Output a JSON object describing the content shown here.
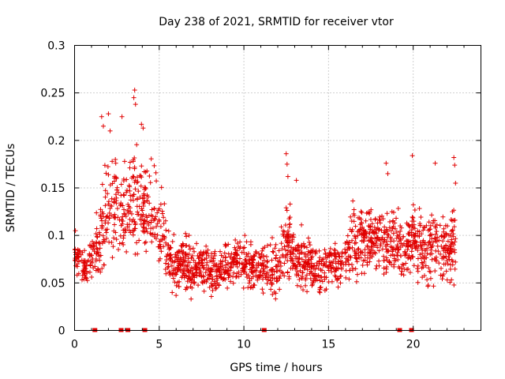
{
  "chart_data": {
    "type": "scatter",
    "title": "Day 238 of 2021, SRMTID for receiver vtor",
    "xlabel": "GPS time / hours",
    "ylabel": "SRMTID / TECUs",
    "xlim": [
      0,
      24
    ],
    "ylim": [
      0,
      0.3
    ],
    "x_ticks": [
      0,
      5,
      10,
      15,
      20
    ],
    "x_tick_labels": [
      "0",
      "5",
      "10",
      "15",
      "20"
    ],
    "y_ticks": [
      0,
      0.05,
      0.1,
      0.15,
      0.2,
      0.25,
      0.3
    ],
    "y_tick_labels": [
      "0",
      "0.05",
      "0.1",
      "0.15",
      "0.2",
      "0.25",
      "0.3"
    ],
    "grid": true,
    "marker": "plus",
    "color": "#e00000",
    "envelope_hours": [
      0,
      0.5,
      1,
      1.5,
      2,
      2.5,
      3,
      3.5,
      4,
      4.5,
      5,
      5.5,
      6,
      6.5,
      7,
      7.5,
      8,
      8.5,
      9,
      9.5,
      10,
      10.5,
      11,
      11.5,
      12,
      12.5,
      13,
      13.5,
      14,
      14.5,
      15,
      15.5,
      16,
      16.5,
      17,
      17.5,
      18,
      18.5,
      19,
      19.5,
      20,
      20.5,
      21,
      21.5,
      22,
      22.5
    ],
    "envelope_low": [
      0.06,
      0.04,
      0.05,
      0.04,
      0.06,
      0.05,
      0.05,
      0.06,
      0.06,
      0.05,
      0.05,
      0.04,
      0.03,
      0.03,
      0.03,
      0.03,
      0.03,
      0.03,
      0.035,
      0.035,
      0.04,
      0.03,
      0.03,
      0.025,
      0.02,
      0.03,
      0.03,
      0.03,
      0.035,
      0.03,
      0.035,
      0.04,
      0.04,
      0.045,
      0.05,
      0.05,
      0.045,
      0.04,
      0.035,
      0.04,
      0.045,
      0.04,
      0.035,
      0.04,
      0.035,
      0.04
    ],
    "envelope_high": [
      0.1,
      0.09,
      0.1,
      0.15,
      0.21,
      0.2,
      0.2,
      0.22,
      0.21,
      0.19,
      0.18,
      0.12,
      0.1,
      0.12,
      0.1,
      0.1,
      0.1,
      0.09,
      0.1,
      0.11,
      0.12,
      0.1,
      0.1,
      0.1,
      0.12,
      0.16,
      0.13,
      0.11,
      0.1,
      0.1,
      0.1,
      0.1,
      0.11,
      0.15,
      0.15,
      0.14,
      0.14,
      0.14,
      0.14,
      0.12,
      0.15,
      0.13,
      0.14,
      0.14,
      0.13,
      0.16
    ],
    "spikes": [
      {
        "x": 0.05,
        "y": 0.105
      },
      {
        "x": 1.6,
        "y": 0.225
      },
      {
        "x": 1.7,
        "y": 0.215
      },
      {
        "x": 2.0,
        "y": 0.228
      },
      {
        "x": 2.1,
        "y": 0.21
      },
      {
        "x": 2.8,
        "y": 0.225
      },
      {
        "x": 3.5,
        "y": 0.245
      },
      {
        "x": 3.55,
        "y": 0.253
      },
      {
        "x": 3.6,
        "y": 0.238
      },
      {
        "x": 3.95,
        "y": 0.217
      },
      {
        "x": 4.05,
        "y": 0.213
      },
      {
        "x": 12.5,
        "y": 0.186
      },
      {
        "x": 12.55,
        "y": 0.175
      },
      {
        "x": 12.6,
        "y": 0.162
      },
      {
        "x": 13.1,
        "y": 0.158
      },
      {
        "x": 18.4,
        "y": 0.176
      },
      {
        "x": 18.5,
        "y": 0.165
      },
      {
        "x": 19.95,
        "y": 0.184
      },
      {
        "x": 21.3,
        "y": 0.176
      },
      {
        "x": 22.4,
        "y": 0.182
      },
      {
        "x": 22.45,
        "y": 0.174
      },
      {
        "x": 22.5,
        "y": 0.155
      }
    ],
    "zero_points": [
      1.2,
      2.75,
      3.15,
      4.15,
      11.2,
      19.2,
      19.9
    ]
  }
}
